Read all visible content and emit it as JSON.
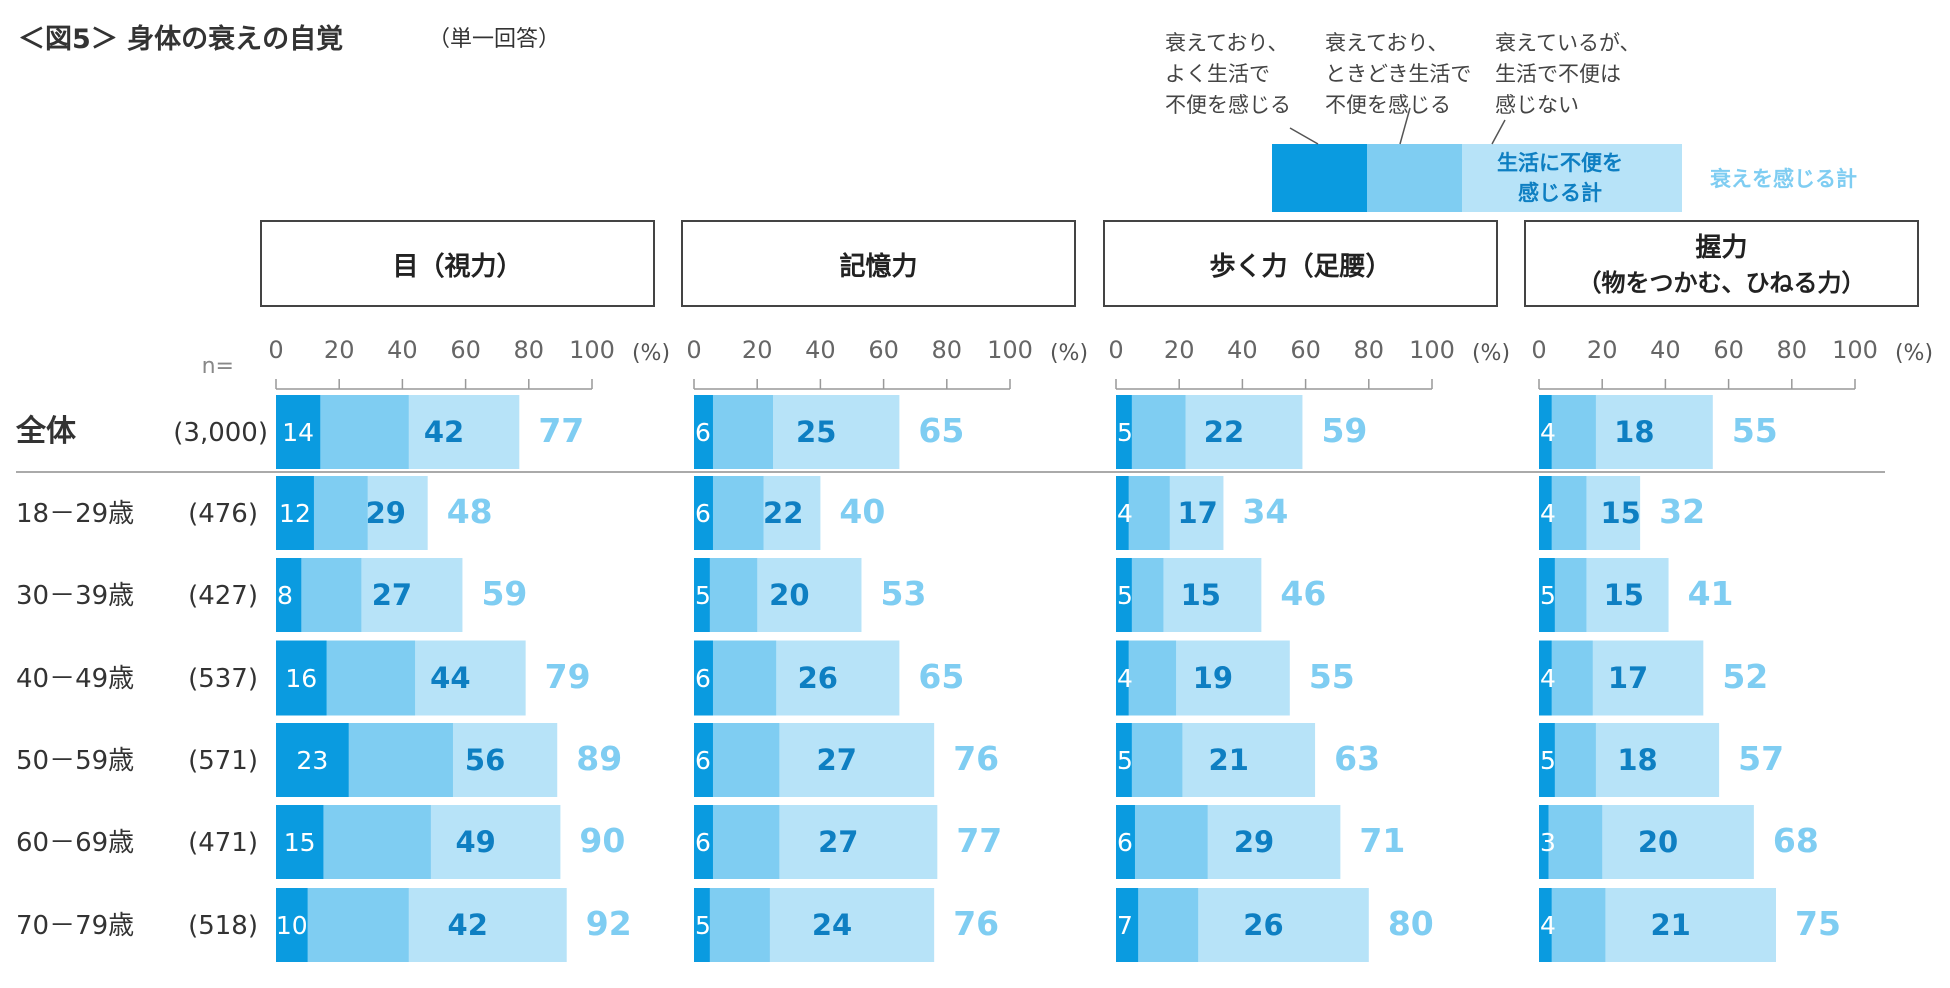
{
  "title": "＜図5＞ 身体の衰えの自覚",
  "subtitle": "（単一回答）",
  "n_label": "n=",
  "pct_unit": "(%)",
  "legend": {
    "items": [
      "衰えており、よく生活で不便を感じる",
      "衰えており、ときどき生活で不便を感じる",
      "衰えているが、生活で不便は感じない"
    ],
    "item_lines": [
      [
        "衰えており、",
        "よく生活で",
        "不便を感じる"
      ],
      [
        "衰えており、",
        "ときどき生活で",
        "不便を感じる"
      ],
      [
        "衰えているが、",
        "生活で不便は",
        "感じない"
      ]
    ],
    "inconvenience_total": [
      "生活に不便を",
      "感じる計"
    ],
    "decline_total": "衰えを感じる計"
  },
  "colors": {
    "seg_often": "#0a9be0",
    "seg_sometimes": "#7fcdf2",
    "seg_no_inconvenience": "#b7e3f8",
    "inconvenience_total_text": "#0e7fc2",
    "decline_total_text": "#7fcdf2",
    "axis": "#999999"
  },
  "chart_data": {
    "type": "bar",
    "stacked": true,
    "orientation": "horizontal",
    "xlim": [
      0,
      100
    ],
    "x_ticks": [
      0,
      20,
      40,
      60,
      80,
      100
    ],
    "rows": [
      {
        "label": "全体",
        "n": "(3,000)"
      },
      {
        "label": "18－29歳",
        "n": "(476)"
      },
      {
        "label": "30－39歳",
        "n": "(427)"
      },
      {
        "label": "40－49歳",
        "n": "(537)"
      },
      {
        "label": "50－59歳",
        "n": "(571)"
      },
      {
        "label": "60－69歳",
        "n": "(471)"
      },
      {
        "label": "70－79歳",
        "n": "(518)"
      }
    ],
    "panels": [
      {
        "title": [
          "目（視力）"
        ],
        "often": [
          14,
          12,
          8,
          16,
          23,
          15,
          10
        ],
        "inconvenience_total": [
          42,
          29,
          27,
          44,
          56,
          49,
          42
        ],
        "decline_total": [
          77,
          48,
          59,
          79,
          89,
          90,
          92
        ]
      },
      {
        "title": [
          "記憶力"
        ],
        "often": [
          6,
          6,
          5,
          6,
          6,
          6,
          5
        ],
        "inconvenience_total": [
          25,
          22,
          20,
          26,
          27,
          27,
          24
        ],
        "decline_total": [
          65,
          40,
          53,
          65,
          76,
          77,
          76
        ]
      },
      {
        "title": [
          "歩く力（足腰）"
        ],
        "often": [
          5,
          4,
          5,
          4,
          5,
          6,
          7
        ],
        "inconvenience_total": [
          22,
          17,
          15,
          19,
          21,
          29,
          26
        ],
        "decline_total": [
          59,
          34,
          46,
          55,
          63,
          71,
          80
        ]
      },
      {
        "title": [
          "握力",
          "（物をつかむ、ひねる力）"
        ],
        "often": [
          4,
          4,
          5,
          4,
          5,
          3,
          4
        ],
        "inconvenience_total": [
          18,
          15,
          15,
          17,
          18,
          20,
          21
        ],
        "decline_total": [
          55,
          32,
          41,
          52,
          57,
          68,
          75
        ]
      }
    ]
  }
}
